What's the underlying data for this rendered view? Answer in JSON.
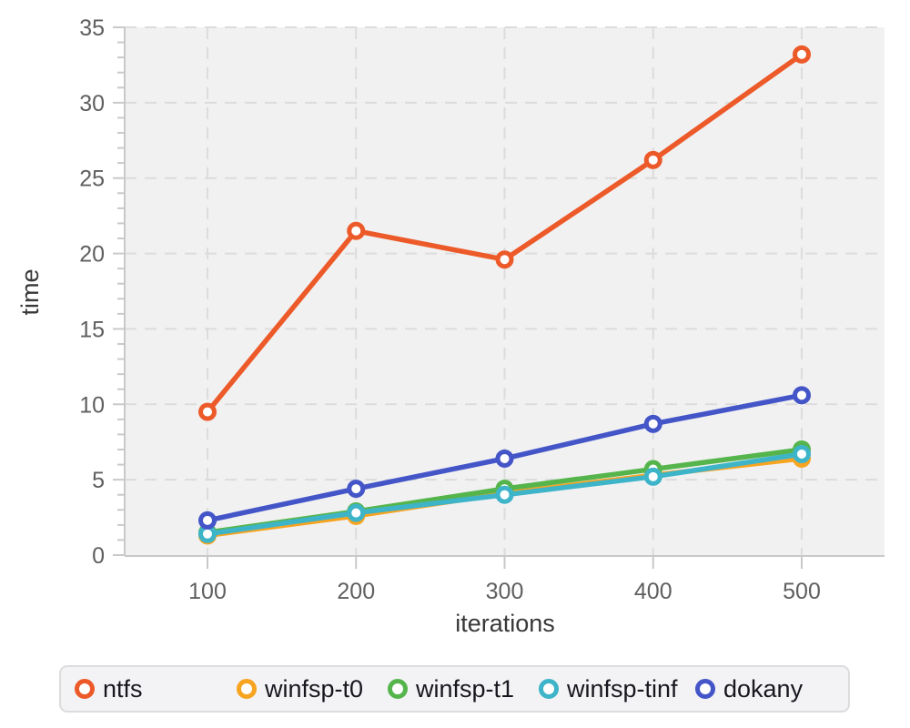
{
  "chart_data": {
    "type": "line",
    "title": "",
    "xlabel": "iterations",
    "ylabel": "time",
    "x": [
      100,
      200,
      300,
      400,
      500
    ],
    "xticks": [
      "100",
      "200",
      "300",
      "400",
      "500"
    ],
    "yticks": [
      "0",
      "5",
      "10",
      "15",
      "20",
      "25",
      "30",
      "35"
    ],
    "ylim": [
      0,
      35
    ],
    "grid": true,
    "grid_style": "dashed",
    "legend_position": "bottom",
    "marker": "open-circle",
    "series": [
      {
        "name": "ntfs",
        "color": "#ed5a29",
        "values": [
          9.5,
          21.5,
          19.6,
          26.2,
          33.2
        ]
      },
      {
        "name": "winfsp-t0",
        "color": "#f7a420",
        "values": [
          1.3,
          2.6,
          4.1,
          5.3,
          6.4
        ]
      },
      {
        "name": "winfsp-t1",
        "color": "#55b54c",
        "values": [
          1.5,
          2.9,
          4.4,
          5.7,
          7.0
        ]
      },
      {
        "name": "winfsp-tinf",
        "color": "#3eb4c9",
        "values": [
          1.4,
          2.8,
          4.0,
          5.2,
          6.7
        ]
      },
      {
        "name": "dokany",
        "color": "#4455c8",
        "values": [
          2.3,
          4.4,
          6.4,
          8.7,
          10.6
        ]
      }
    ]
  },
  "colors": {
    "plot_bg": "#f1f1f2",
    "grid": "#dcdcdc",
    "axis": "#c9c9c9",
    "tick_label": "#5f5f5f",
    "axis_title": "#383838",
    "legend_bg": "#f3f3f5",
    "legend_border": "#dcdcdc",
    "legend_text": "#17171f"
  }
}
